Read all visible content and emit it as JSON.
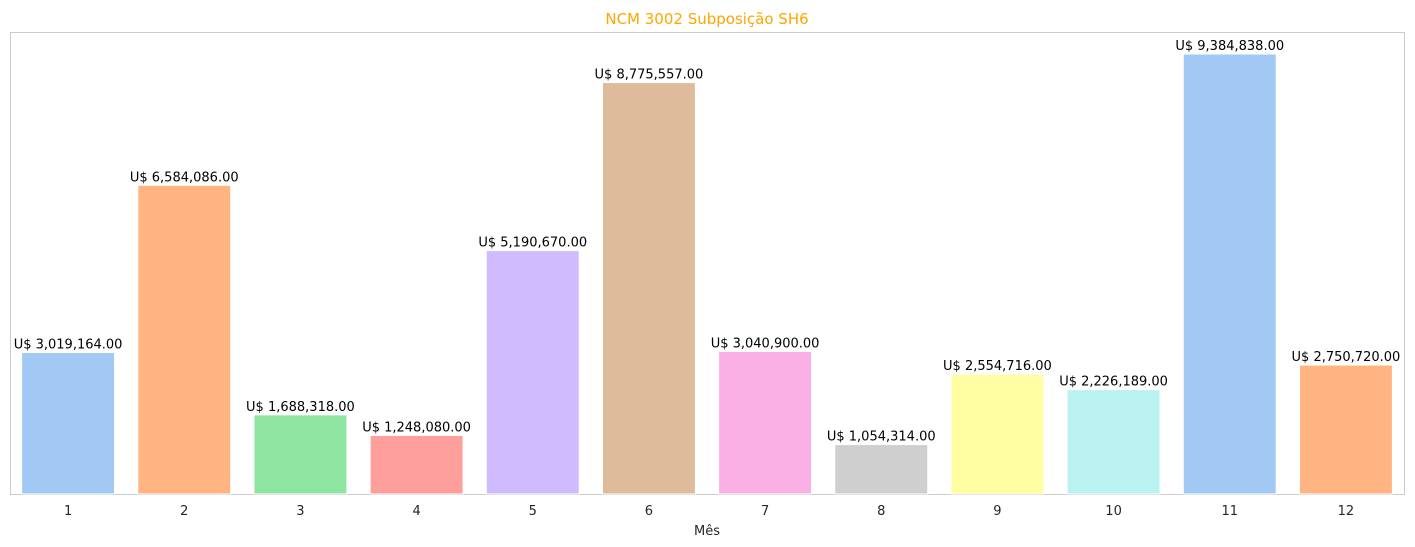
{
  "chart_data": {
    "type": "bar",
    "title": "NCM 3002 Subposição SH6",
    "xlabel": "Mês",
    "ylabel": "",
    "categories": [
      "1",
      "2",
      "3",
      "4",
      "5",
      "6",
      "7",
      "8",
      "9",
      "10",
      "11",
      "12"
    ],
    "values": [
      3019164.0,
      6584086.0,
      1688318.0,
      1248080.0,
      5190670.0,
      8775557.0,
      3040900.0,
      1054314.0,
      2554716.0,
      2226189.0,
      9384838.0,
      2750720.0
    ],
    "value_labels": [
      "U$ 3,019,164.00",
      "U$ 6,584,086.00",
      "U$ 1,688,318.00",
      "U$ 1,248,080.00",
      "U$ 5,190,670.00",
      "U$ 8,775,557.00",
      "U$ 3,040,900.00",
      "U$ 1,054,314.00",
      "U$ 2,554,716.00",
      "U$ 2,226,189.00",
      "U$ 9,384,838.00",
      "U$ 2,750,720.00"
    ],
    "ylim": [
      0,
      9854080
    ],
    "grid": false,
    "legend": "none",
    "colors": [
      "#a1c9f4",
      "#ffb482",
      "#8de5a1",
      "#ff9f9b",
      "#d0bbff",
      "#debb9b",
      "#fab0e4",
      "#cfcfcf",
      "#fffea3",
      "#b9f2f0",
      "#a1c9f4",
      "#ffb482"
    ],
    "title_color": "#ffa500"
  }
}
